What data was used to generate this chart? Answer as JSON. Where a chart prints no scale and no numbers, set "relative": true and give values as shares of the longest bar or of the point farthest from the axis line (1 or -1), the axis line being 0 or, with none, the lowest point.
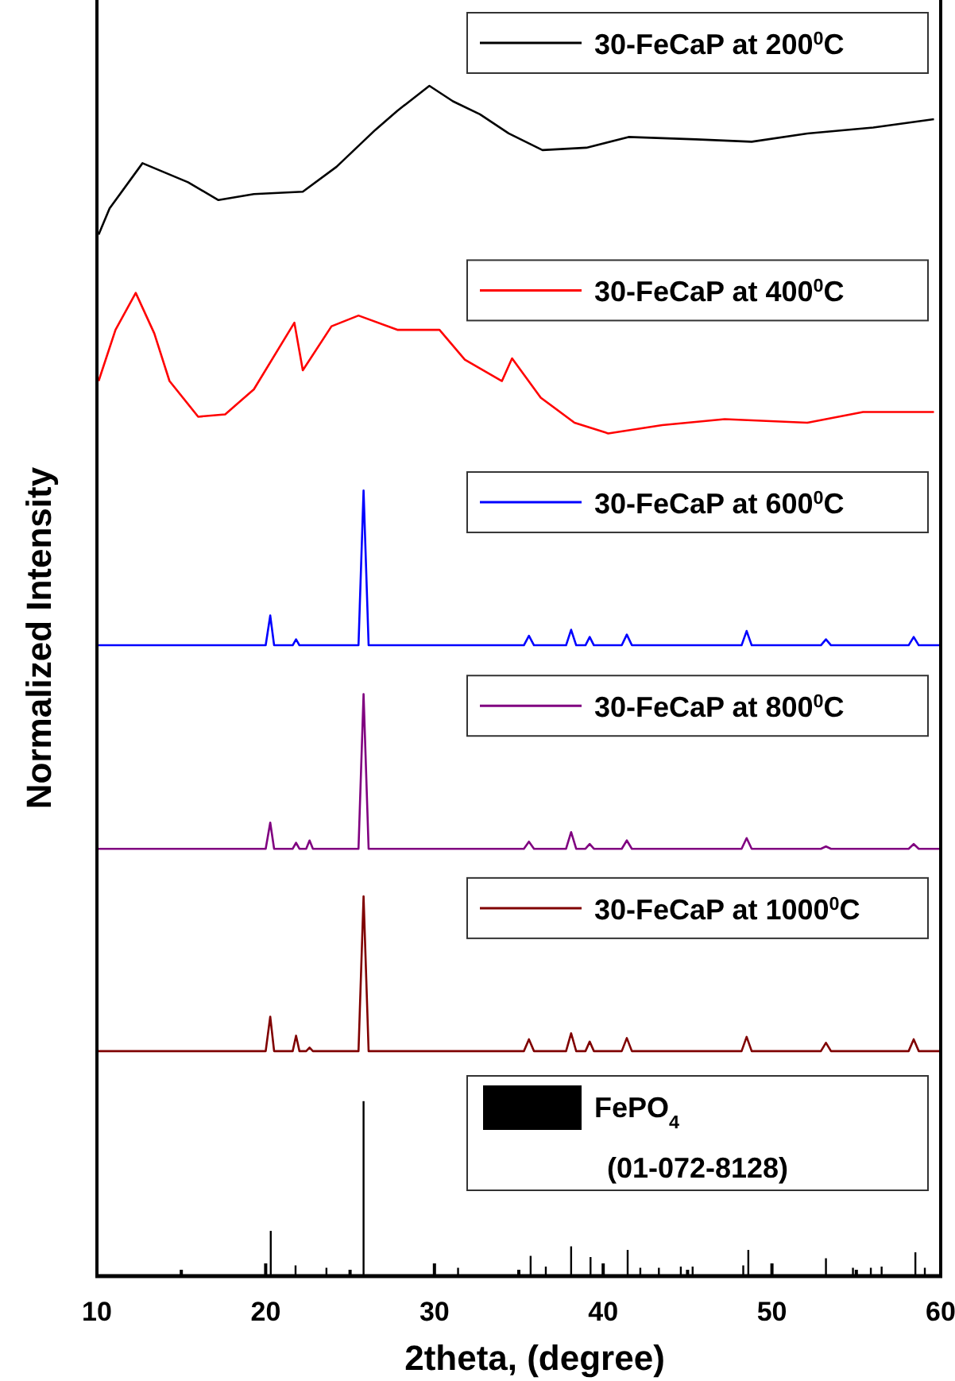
{
  "chart_data": {
    "type": "line",
    "relative": true,
    "xlabel": "2theta, (degree)",
    "ylabel": "Normalized Intensity",
    "xlim": [
      10,
      60
    ],
    "xticks": [
      10,
      {
        "value": 15,
        "label": null
      },
      20,
      {
        "value": 25,
        "label": null
      },
      30,
      {
        "value": 35,
        "label": null
      },
      40,
      {
        "value": 45,
        "label": null
      },
      50,
      {
        "value": 55,
        "label": null
      },
      60
    ],
    "legend": "right",
    "annotations": [
      "(01-072-8128)"
    ],
    "series": [
      {
        "name": "30-FeCaP at 200$^{0}$C",
        "color": "#000000",
        "x": [
          10.1,
          10.75,
          12.7,
          15.4,
          17.2,
          19.3,
          22.2,
          24.2,
          26.5,
          27.8,
          29.7,
          31.1,
          32.7,
          34.4,
          36.4,
          39.0,
          41.5,
          45.5,
          48.8,
          52.1,
          56.0,
          59.6
        ],
        "values": [
          0.875,
          0.897,
          0.935,
          0.919,
          0.904,
          0.909,
          0.911,
          0.932,
          0.963,
          0.979,
          1.0,
          0.987,
          0.976,
          0.96,
          0.946,
          0.948,
          0.957,
          0.955,
          0.953,
          0.96,
          0.965,
          0.972
        ]
      },
      {
        "name": "30-FeCaP at 400$^{0}$C",
        "color": "#ff0000",
        "x": [
          10.1,
          11.1,
          12.3,
          13.4,
          14.3,
          16.0,
          17.6,
          19.3,
          21.7,
          22.2,
          23.9,
          25.5,
          27.8,
          30.3,
          31.8,
          34.0,
          34.6,
          36.3,
          38.3,
          40.3,
          43.5,
          47.2,
          52.1,
          55.4,
          59.6
        ],
        "values": [
          0.752,
          0.795,
          0.826,
          0.792,
          0.752,
          0.722,
          0.724,
          0.745,
          0.801,
          0.761,
          0.798,
          0.807,
          0.795,
          0.795,
          0.77,
          0.752,
          0.771,
          0.738,
          0.717,
          0.708,
          0.715,
          0.72,
          0.717,
          0.726,
          0.726
        ]
      },
      {
        "name": "30-FeCaP at 600$^{0}$C",
        "color": "#0000ff",
        "x": [
          10,
          20.0,
          20.27,
          20.5,
          21.6,
          21.8,
          22.0,
          25.5,
          25.8,
          26.1,
          35.3,
          35.6,
          35.9,
          37.8,
          38.1,
          38.4,
          38.95,
          39.2,
          39.45,
          41.1,
          41.4,
          41.7,
          48.2,
          48.5,
          48.8,
          52.9,
          53.2,
          53.5,
          58.1,
          58.4,
          58.7,
          60
        ],
        "values": [
          0.53,
          0.53,
          0.555,
          0.53,
          0.53,
          0.535,
          0.53,
          0.53,
          0.66,
          0.53,
          0.53,
          0.538,
          0.53,
          0.53,
          0.543,
          0.53,
          0.53,
          0.537,
          0.53,
          0.53,
          0.539,
          0.53,
          0.53,
          0.542,
          0.53,
          0.53,
          0.535,
          0.53,
          0.53,
          0.537,
          0.53,
          0.53
        ]
      },
      {
        "name": "30-FeCaP at 800$^{0}$C",
        "color": "#800080",
        "x": [
          10,
          20.0,
          20.27,
          20.5,
          21.6,
          21.8,
          22.0,
          22.4,
          22.6,
          22.8,
          25.5,
          25.8,
          26.1,
          35.3,
          35.6,
          35.9,
          37.8,
          38.1,
          38.4,
          38.95,
          39.2,
          39.45,
          41.1,
          41.4,
          41.7,
          48.2,
          48.5,
          48.8,
          52.9,
          53.2,
          53.5,
          58.1,
          58.4,
          58.7,
          60
        ],
        "values": [
          0.359,
          0.359,
          0.381,
          0.359,
          0.359,
          0.364,
          0.359,
          0.359,
          0.366,
          0.359,
          0.359,
          0.489,
          0.359,
          0.359,
          0.365,
          0.359,
          0.359,
          0.373,
          0.359,
          0.359,
          0.363,
          0.359,
          0.359,
          0.366,
          0.359,
          0.359,
          0.368,
          0.359,
          0.359,
          0.361,
          0.359,
          0.359,
          0.363,
          0.359,
          0.359
        ]
      },
      {
        "name": "30-FeCaP at 1000$^{0}$C",
        "color": "#800000",
        "x": [
          10,
          20.0,
          20.27,
          20.5,
          21.6,
          21.8,
          22.0,
          22.4,
          22.6,
          22.8,
          25.5,
          25.8,
          26.1,
          35.3,
          35.6,
          35.9,
          37.8,
          38.1,
          38.4,
          38.95,
          39.2,
          39.45,
          41.1,
          41.4,
          41.7,
          48.2,
          48.5,
          48.8,
          52.9,
          53.2,
          53.5,
          58.1,
          58.4,
          58.7,
          60
        ],
        "values": [
          0.189,
          0.189,
          0.218,
          0.189,
          0.189,
          0.202,
          0.189,
          0.189,
          0.192,
          0.189,
          0.189,
          0.319,
          0.189,
          0.189,
          0.199,
          0.189,
          0.189,
          0.204,
          0.189,
          0.189,
          0.197,
          0.189,
          0.189,
          0.2,
          0.189,
          0.189,
          0.201,
          0.189,
          0.189,
          0.196,
          0.189,
          0.189,
          0.199,
          0.189,
          0.189
        ]
      },
      {
        "name": "FePO$_{4}$",
        "type": "bar",
        "color": "#000000",
        "x": [
          20.3,
          21.77,
          23.6,
          25.8,
          31.4,
          35.7,
          36.6,
          38.1,
          39.25,
          41.45,
          42.2,
          43.3,
          44.6,
          45.3,
          48.3,
          48.6,
          53.2,
          54.8,
          55.86,
          56.5,
          58.5,
          59.06
        ],
        "values": [
          0.038,
          0.009,
          0.007,
          0.147,
          0.007,
          0.017,
          0.008,
          0.025,
          0.016,
          0.022,
          0.007,
          0.007,
          0.008,
          0.008,
          0.009,
          0.022,
          0.015,
          0.007,
          0.007,
          0.008,
          0.02,
          0.007
        ]
      }
    ]
  }
}
